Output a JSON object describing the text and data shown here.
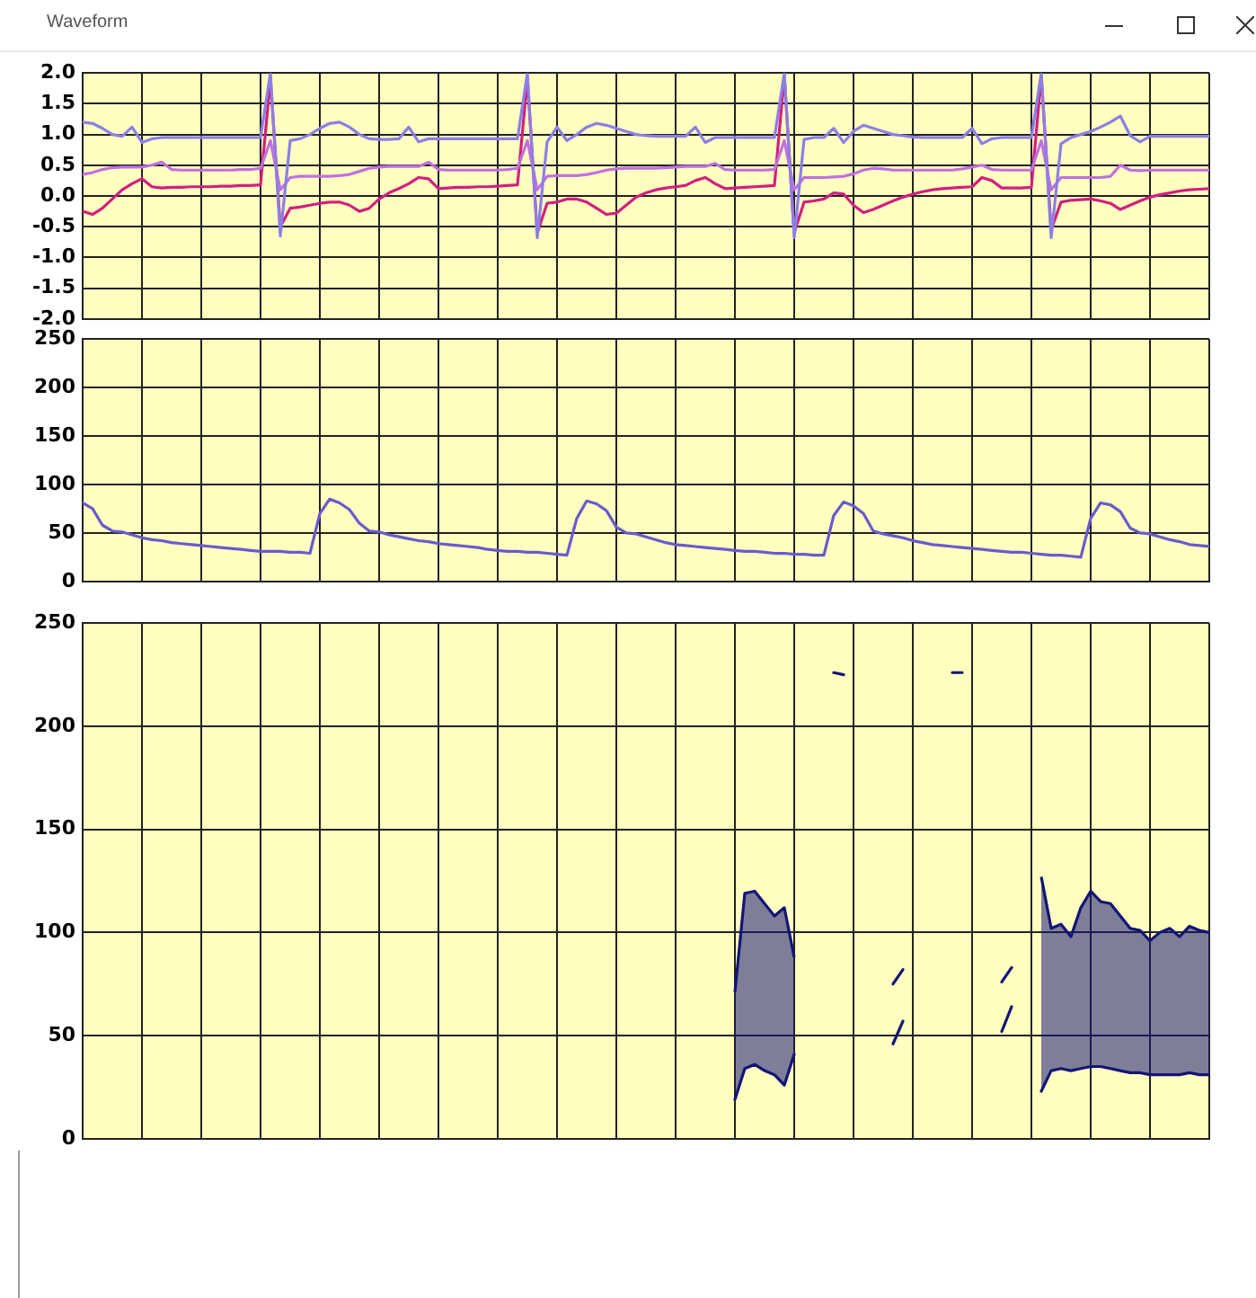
{
  "chart_data": [
    {
      "type": "line",
      "title": "Waveform",
      "grid": true,
      "tick_labels": "y",
      "ylim": [
        -2,
        2
      ],
      "yticks": [
        {
          "value": -2,
          "label": "-2.0"
        },
        {
          "value": -1.5,
          "label": "-1.5"
        },
        {
          "value": -1,
          "label": "-1.0"
        },
        {
          "value": -0.5,
          "label": "-0.5"
        },
        {
          "value": 0,
          "label": "0.0"
        },
        {
          "value": 0.5,
          "label": "0.5"
        },
        {
          "value": 1,
          "label": "1.0"
        },
        {
          "value": 1.5,
          "label": "1.5"
        },
        {
          "value": 2,
          "label": "2.0"
        }
      ],
      "categories": [
        null,
        null,
        null,
        null,
        null,
        null,
        null,
        null,
        null,
        null,
        null,
        null,
        null,
        null,
        null,
        null,
        null,
        null,
        null,
        null,
        null,
        null,
        null,
        null,
        null,
        null,
        null,
        null,
        null,
        null,
        null,
        null,
        null,
        null,
        null,
        null,
        null,
        null,
        null,
        null,
        null,
        null,
        null,
        null,
        null,
        null,
        null,
        null,
        null,
        null,
        null,
        null,
        null,
        null,
        null,
        null,
        null,
        null,
        null,
        null,
        null,
        null,
        null,
        null,
        null,
        null,
        null,
        null,
        null,
        null,
        null,
        null,
        null,
        null,
        null,
        null,
        null,
        null,
        null,
        null,
        null,
        null,
        null,
        null,
        null,
        null,
        null,
        null,
        null,
        null,
        null,
        null,
        null,
        null,
        null,
        null,
        null,
        null,
        null,
        null,
        null,
        null,
        null,
        null,
        null,
        null,
        null,
        null,
        null,
        null,
        null,
        null,
        null,
        null,
        null
      ],
      "series": [
        {
          "color": "#8c7fe6",
          "values": [
            1.2,
            1.18,
            1.1,
            1.0,
            0.97,
            1.12,
            0.87,
            0.93,
            0.95,
            0.95,
            0.95,
            0.95,
            0.95,
            0.95,
            0.95,
            0.95,
            0.95,
            0.95,
            0.95,
            2.0,
            -0.65,
            0.9,
            0.93,
            1.0,
            1.1,
            1.18,
            1.2,
            1.12,
            1.0,
            0.93,
            0.92,
            0.92,
            0.93,
            1.12,
            0.88,
            0.93,
            0.93,
            0.93,
            0.93,
            0.93,
            0.93,
            0.93,
            0.93,
            0.93,
            0.93,
            2.0,
            -0.68,
            0.88,
            1.12,
            0.9,
            1.0,
            1.12,
            1.18,
            1.15,
            1.1,
            1.05,
            1.0,
            0.98,
            0.97,
            0.97,
            0.97,
            0.97,
            1.12,
            0.87,
            0.95,
            0.95,
            0.95,
            0.95,
            0.95,
            0.95,
            0.95,
            2.0,
            -0.68,
            0.92,
            0.95,
            0.95,
            1.1,
            0.87,
            1.05,
            1.15,
            1.1,
            1.05,
            1.0,
            0.98,
            0.96,
            0.95,
            0.95,
            0.95,
            0.95,
            0.95,
            1.1,
            0.85,
            0.93,
            0.95,
            0.95,
            0.95,
            0.95,
            2.0,
            -0.68,
            0.85,
            0.95,
            1.0,
            1.05,
            1.12,
            1.2,
            1.3,
            0.98,
            0.88,
            0.97,
            0.97,
            0.97,
            0.97,
            0.97,
            0.97,
            0.97
          ]
        },
        {
          "color": "#c070e0",
          "values": [
            0.35,
            0.38,
            0.43,
            0.46,
            0.47,
            0.47,
            0.47,
            0.5,
            0.55,
            0.43,
            0.42,
            0.42,
            0.42,
            0.42,
            0.42,
            0.42,
            0.43,
            0.43,
            0.45,
            0.9,
            0.1,
            0.3,
            0.32,
            0.32,
            0.32,
            0.32,
            0.33,
            0.35,
            0.4,
            0.45,
            0.47,
            0.48,
            0.48,
            0.48,
            0.48,
            0.55,
            0.43,
            0.42,
            0.42,
            0.42,
            0.42,
            0.42,
            0.42,
            0.43,
            0.45,
            0.9,
            0.1,
            0.32,
            0.33,
            0.33,
            0.33,
            0.35,
            0.38,
            0.42,
            0.44,
            0.45,
            0.45,
            0.45,
            0.45,
            0.46,
            0.47,
            0.48,
            0.48,
            0.48,
            0.53,
            0.43,
            0.42,
            0.42,
            0.42,
            0.42,
            0.43,
            0.9,
            0.1,
            0.3,
            0.3,
            0.3,
            0.31,
            0.32,
            0.36,
            0.42,
            0.45,
            0.44,
            0.42,
            0.42,
            0.42,
            0.42,
            0.42,
            0.42,
            0.42,
            0.44,
            0.47,
            0.5,
            0.43,
            0.42,
            0.42,
            0.42,
            0.42,
            0.9,
            0.1,
            0.3,
            0.3,
            0.3,
            0.3,
            0.3,
            0.32,
            0.5,
            0.42,
            0.41,
            0.42,
            0.42,
            0.42,
            0.42,
            0.42,
            0.42,
            0.42
          ]
        },
        {
          "color": "#d02080",
          "values": [
            -0.25,
            -0.3,
            -0.2,
            -0.05,
            0.1,
            0.2,
            0.28,
            0.15,
            0.13,
            0.14,
            0.14,
            0.15,
            0.15,
            0.15,
            0.16,
            0.16,
            0.17,
            0.17,
            0.18,
            1.9,
            -0.5,
            -0.2,
            -0.18,
            -0.15,
            -0.12,
            -0.1,
            -0.1,
            -0.15,
            -0.25,
            -0.2,
            -0.05,
            0.05,
            0.12,
            0.2,
            0.3,
            0.28,
            0.12,
            0.13,
            0.14,
            0.14,
            0.15,
            0.15,
            0.16,
            0.17,
            0.18,
            1.9,
            -0.6,
            -0.12,
            -0.1,
            -0.05,
            -0.05,
            -0.1,
            -0.2,
            -0.3,
            -0.28,
            -0.15,
            -0.02,
            0.05,
            0.1,
            0.13,
            0.15,
            0.17,
            0.25,
            0.3,
            0.2,
            0.12,
            0.13,
            0.14,
            0.15,
            0.16,
            0.17,
            1.95,
            -0.6,
            -0.1,
            -0.08,
            -0.05,
            0.05,
            0.03,
            -0.15,
            -0.27,
            -0.22,
            -0.15,
            -0.08,
            -0.02,
            0.03,
            0.07,
            0.1,
            0.12,
            0.13,
            0.14,
            0.15,
            0.3,
            0.25,
            0.13,
            0.13,
            0.13,
            0.14,
            1.95,
            -0.55,
            -0.1,
            -0.07,
            -0.06,
            -0.05,
            -0.08,
            -0.12,
            -0.22,
            -0.15,
            -0.08,
            -0.02,
            0.02,
            0.05,
            0.08,
            0.1,
            0.11,
            0.12
          ]
        }
      ]
    },
    {
      "type": "line",
      "grid": true,
      "tick_labels": "y",
      "ylim": [
        0,
        250
      ],
      "yticks": [
        0,
        50,
        100,
        150,
        200,
        250
      ],
      "categories": [
        null,
        null,
        null,
        null,
        null,
        null,
        null,
        null,
        null,
        null,
        null,
        null,
        null,
        null,
        null,
        null,
        null,
        null,
        null,
        null,
        null,
        null,
        null,
        null,
        null,
        null,
        null,
        null,
        null,
        null,
        null,
        null,
        null,
        null,
        null,
        null,
        null,
        null,
        null,
        null,
        null,
        null,
        null,
        null,
        null,
        null,
        null,
        null,
        null,
        null,
        null,
        null,
        null,
        null,
        null,
        null,
        null,
        null,
        null,
        null,
        null,
        null,
        null,
        null,
        null,
        null,
        null,
        null,
        null,
        null,
        null,
        null,
        null,
        null,
        null,
        null,
        null,
        null,
        null,
        null,
        null,
        null,
        null,
        null,
        null,
        null,
        null,
        null,
        null,
        null,
        null,
        null,
        null,
        null,
        null,
        null,
        null,
        null,
        null,
        null,
        null,
        null,
        null,
        null,
        null,
        null,
        null,
        null,
        null,
        null,
        null,
        null,
        null,
        null,
        null
      ],
      "series": [
        {
          "color": "#6a5acd",
          "values": [
            81,
            75,
            58,
            52,
            51,
            48,
            45,
            43,
            42,
            40,
            39,
            38,
            37,
            36,
            35,
            34,
            33,
            32,
            31,
            31,
            31,
            30,
            30,
            29,
            70,
            85,
            81,
            74,
            60,
            52,
            51,
            48,
            46,
            44,
            42,
            41,
            39,
            38,
            37,
            36,
            35,
            33,
            32,
            31,
            31,
            30,
            30,
            29,
            28,
            27,
            65,
            83,
            80,
            73,
            56,
            50,
            49,
            46,
            43,
            40,
            38,
            37,
            36,
            35,
            34,
            33,
            32,
            31,
            31,
            30,
            29,
            29,
            28,
            28,
            27,
            27,
            68,
            82,
            78,
            70,
            52,
            49,
            47,
            45,
            42,
            40,
            38,
            37,
            36,
            35,
            34,
            33,
            32,
            31,
            30,
            30,
            29,
            28,
            27,
            27,
            26,
            25,
            65,
            81,
            79,
            72,
            55,
            50,
            49,
            46,
            43,
            41,
            38,
            37,
            36
          ]
        }
      ]
    },
    {
      "type": "line",
      "grid": true,
      "tick_labels": "y",
      "ylim": [
        0,
        250
      ],
      "yticks": [
        0,
        50,
        100,
        150,
        200,
        250
      ],
      "categories": [
        null,
        null,
        null,
        null,
        null,
        null,
        null,
        null,
        null,
        null,
        null,
        null,
        null,
        null,
        null,
        null,
        null,
        null,
        null,
        null,
        null,
        null,
        null,
        null,
        null,
        null,
        null,
        null,
        null,
        null,
        null,
        null,
        null,
        null,
        null,
        null,
        null,
        null,
        null,
        null,
        null,
        null,
        null,
        null,
        null,
        null,
        null,
        null,
        null,
        null,
        null,
        null,
        null,
        null,
        null,
        null,
        null,
        null,
        null,
        null,
        null,
        null,
        null,
        null,
        null,
        null,
        null,
        null,
        null,
        null,
        null,
        null,
        null,
        null,
        null,
        null,
        null,
        null,
        null,
        null,
        null,
        null,
        null,
        null,
        null,
        null,
        null,
        null,
        null,
        null,
        null,
        null,
        null,
        null,
        null,
        null,
        null,
        null,
        null,
        null,
        null,
        null,
        null,
        null,
        null,
        null,
        null,
        null,
        null,
        null,
        null,
        null,
        null,
        null,
        null
      ],
      "series": [
        {
          "color": "#141478",
          "values": [
            null,
            null,
            null,
            null,
            null,
            null,
            null,
            null,
            null,
            null,
            null,
            null,
            null,
            null,
            null,
            null,
            null,
            null,
            null,
            null,
            null,
            null,
            null,
            null,
            null,
            null,
            null,
            null,
            null,
            null,
            null,
            null,
            null,
            null,
            null,
            null,
            null,
            null,
            null,
            null,
            null,
            null,
            null,
            null,
            null,
            null,
            null,
            null,
            null,
            null,
            null,
            null,
            null,
            null,
            null,
            null,
            null,
            null,
            null,
            null,
            null,
            null,
            null,
            null,
            null,
            null,
            19,
            34,
            36,
            33,
            31,
            26,
            41,
            null,
            null,
            null,
            null,
            null,
            null,
            null,
            null,
            null,
            null,
            null,
            null,
            null,
            null,
            null,
            null,
            null,
            null,
            null,
            null,
            null,
            null,
            null,
            null,
            23,
            33,
            34,
            33,
            34,
            35,
            35,
            34,
            33,
            32,
            32,
            31,
            31,
            31,
            31,
            32,
            31,
            31
          ]
        },
        {
          "type": "area",
          "color": "#141478",
          "values": [
            null,
            null,
            null,
            null,
            null,
            null,
            null,
            null,
            null,
            null,
            null,
            null,
            null,
            null,
            null,
            null,
            null,
            null,
            null,
            null,
            null,
            null,
            null,
            null,
            null,
            null,
            null,
            null,
            null,
            null,
            null,
            null,
            null,
            null,
            null,
            null,
            null,
            null,
            null,
            null,
            null,
            null,
            null,
            null,
            null,
            null,
            null,
            null,
            null,
            null,
            null,
            null,
            null,
            null,
            null,
            null,
            null,
            null,
            null,
            null,
            null,
            null,
            null,
            null,
            null,
            null,
            71,
            119,
            120,
            114,
            108,
            112,
            88,
            null,
            null,
            null,
            null,
            null,
            null,
            null,
            null,
            null,
            null,
            null,
            null,
            null,
            null,
            null,
            null,
            null,
            null,
            null,
            null,
            null,
            null,
            null,
            null,
            127,
            102,
            104,
            98,
            112,
            120,
            115,
            114,
            108,
            102,
            101,
            96,
            100,
            102,
            98,
            103,
            101,
            100
          ]
        },
        {
          "color": "#141478",
          "values": [
            null,
            null,
            null,
            null,
            null,
            null,
            null,
            null,
            null,
            null,
            null,
            null,
            null,
            null,
            null,
            null,
            null,
            null,
            null,
            null,
            null,
            null,
            null,
            null,
            null,
            null,
            null,
            null,
            null,
            null,
            null,
            null,
            null,
            null,
            null,
            null,
            null,
            null,
            null,
            null,
            null,
            null,
            null,
            null,
            null,
            null,
            null,
            null,
            null,
            null,
            null,
            null,
            null,
            null,
            null,
            null,
            null,
            null,
            null,
            null,
            null,
            null,
            null,
            null,
            null,
            null,
            null,
            null,
            null,
            null,
            null,
            null,
            null,
            null,
            null,
            null,
            226,
            225,
            null,
            null,
            null,
            null,
            46,
            57,
            null,
            null,
            null,
            null,
            226,
            226,
            null,
            null,
            null,
            52,
            64,
            null,
            null,
            null,
            null,
            null,
            null,
            null,
            null,
            null,
            null,
            null,
            null,
            null,
            null,
            null,
            null,
            null,
            null,
            null,
            null
          ]
        },
        {
          "color": "#141478",
          "values": [
            null,
            null,
            null,
            null,
            null,
            null,
            null,
            null,
            null,
            null,
            null,
            null,
            null,
            null,
            null,
            null,
            null,
            null,
            null,
            null,
            null,
            null,
            null,
            null,
            null,
            null,
            null,
            null,
            null,
            null,
            null,
            null,
            null,
            null,
            null,
            null,
            null,
            null,
            null,
            null,
            null,
            null,
            null,
            null,
            null,
            null,
            null,
            null,
            null,
            null,
            null,
            null,
            null,
            null,
            null,
            null,
            null,
            null,
            null,
            null,
            null,
            null,
            null,
            null,
            null,
            null,
            null,
            null,
            null,
            null,
            null,
            null,
            null,
            null,
            null,
            null,
            null,
            null,
            null,
            null,
            null,
            null,
            75,
            82,
            null,
            null,
            null,
            null,
            null,
            null,
            null,
            null,
            null,
            76,
            83,
            null,
            null,
            null,
            null,
            null,
            null,
            null,
            null,
            null,
            null,
            null,
            null,
            null,
            null,
            null,
            null,
            null,
            null,
            null,
            null
          ]
        }
      ]
    }
  ]
}
